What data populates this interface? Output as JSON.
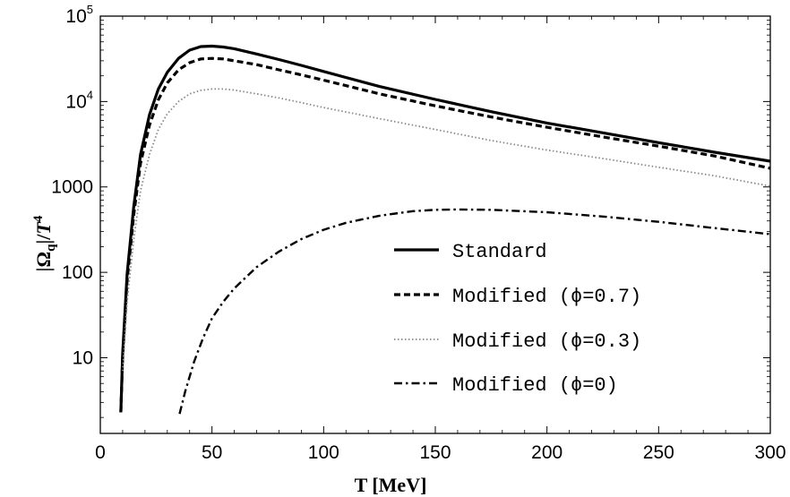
{
  "chart_data": {
    "type": "line",
    "title": "",
    "xlabel": "T  [MeV]",
    "ylabel": "|Ω_q|/T^4",
    "x_scale": "linear",
    "y_scale": "log",
    "xlim": [
      0,
      300
    ],
    "ylim": [
      1.3,
      100000
    ],
    "grid": false,
    "legend_position": "lower-right inside",
    "x_ticks": [
      0,
      50,
      100,
      150,
      200,
      250,
      300
    ],
    "x_tick_labels": [
      "0",
      "50",
      "100",
      "150",
      "200",
      "250",
      "300"
    ],
    "y_ticks": [
      {
        "value": 10,
        "label": "10",
        "base": "",
        "exp": ""
      },
      {
        "value": 100,
        "label": "100",
        "base": "",
        "exp": ""
      },
      {
        "value": 1000,
        "label": "1000",
        "base": "",
        "exp": ""
      },
      {
        "value": 10000,
        "label": "",
        "base": "10",
        "exp": "4"
      },
      {
        "value": 100000,
        "label": "",
        "base": "10",
        "exp": "5"
      }
    ],
    "series": [
      {
        "name": "Standard",
        "legend_label": "Standard",
        "style": "solid",
        "color": "#000000",
        "x": [
          9.2,
          10,
          12,
          15,
          18,
          22,
          26,
          30,
          35,
          40,
          45,
          50,
          55,
          60,
          70,
          80,
          90,
          100,
          125,
          150,
          175,
          200,
          225,
          250,
          275,
          300
        ],
        "y": [
          2.3,
          11,
          95,
          600,
          2400,
          7000,
          14000,
          22000,
          32000,
          40000,
          44000,
          44500,
          43500,
          41500,
          36000,
          31000,
          26500,
          22500,
          15000,
          10600,
          7600,
          5600,
          4300,
          3300,
          2550,
          2000
        ]
      },
      {
        "name": "Modified (ϕ=0.7)",
        "legend_label": "Modified (ϕ=0.7)",
        "style": "dashed",
        "color": "#000000",
        "x": [
          9.2,
          10,
          12,
          15,
          18,
          22,
          26,
          30,
          35,
          40,
          45,
          50,
          55,
          60,
          70,
          80,
          90,
          100,
          125,
          150,
          175,
          200,
          225,
          250,
          275,
          300
        ],
        "y": [
          2.3,
          10,
          80,
          480,
          1900,
          5300,
          10500,
          16500,
          23500,
          28500,
          31500,
          32000,
          31500,
          30000,
          27000,
          23500,
          20500,
          17800,
          12300,
          8900,
          6600,
          5000,
          3850,
          3000,
          2300,
          1650
        ]
      },
      {
        "name": "Modified (ϕ=0.3)",
        "legend_label": "Modified (ϕ=0.3)",
        "style": "dotted",
        "color": "#888888",
        "x": [
          10,
          12,
          15,
          18,
          22,
          26,
          30,
          35,
          40,
          45,
          50,
          55,
          60,
          70,
          80,
          90,
          100,
          125,
          150,
          175,
          200,
          225,
          250,
          275,
          300
        ],
        "y": [
          7,
          45,
          250,
          900,
          2400,
          4700,
          7200,
          10000,
          12300,
          13500,
          14000,
          14000,
          13600,
          12300,
          11000,
          9700,
          8500,
          6300,
          4700,
          3500,
          2700,
          2150,
          1700,
          1350,
          1020
        ]
      },
      {
        "name": "Modified (ϕ=0)",
        "legend_label": "Modified (ϕ=0)",
        "style": "dashdot",
        "color": "#000000",
        "x": [
          35.5,
          38,
          42,
          46,
          50,
          55,
          60,
          70,
          80,
          90,
          100,
          110,
          125,
          140,
          150,
          160,
          175,
          200,
          225,
          250,
          275,
          300
        ],
        "y": [
          2.2,
          4,
          9,
          17,
          29,
          45,
          65,
          115,
          175,
          245,
          315,
          380,
          460,
          520,
          540,
          545,
          540,
          505,
          450,
          390,
          330,
          280
        ]
      }
    ]
  }
}
